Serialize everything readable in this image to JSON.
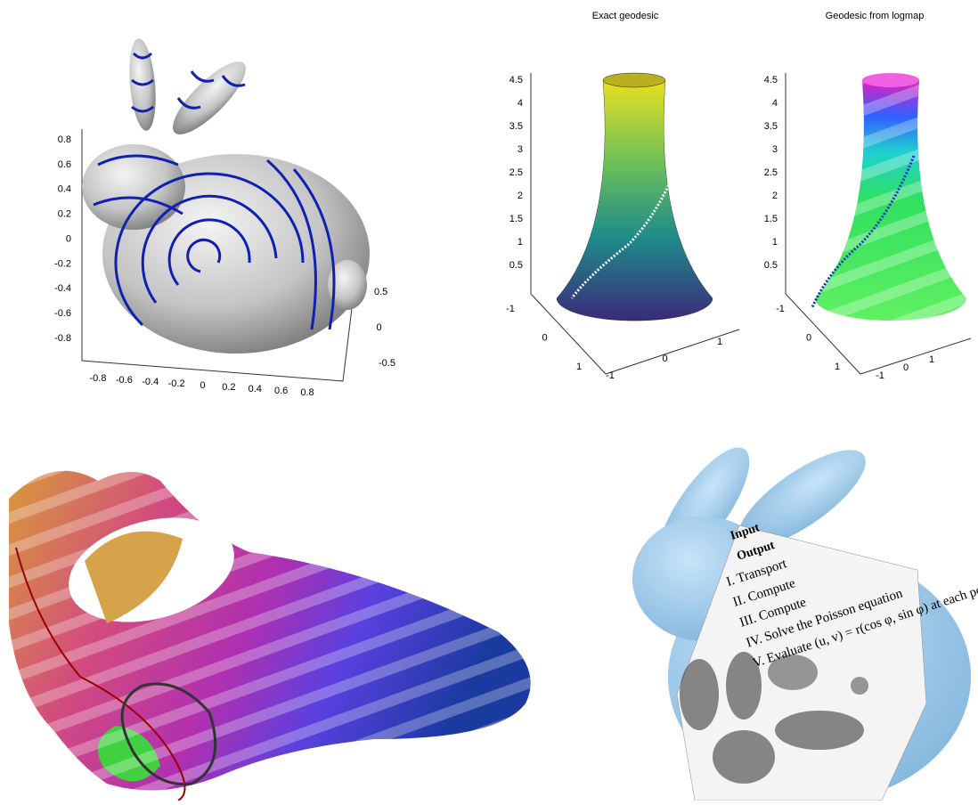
{
  "panels": [
    {
      "z_ticks": [
        "0.8",
        "0.6",
        "0.4",
        "0.2",
        "0",
        "-0.2",
        "-0.4",
        "-0.6",
        "-0.8"
      ],
      "x_ticks": [
        "-0.8",
        "-0.6",
        "-0.4",
        "-0.2",
        "0",
        "0.2",
        "0.4",
        "0.6",
        "0.8"
      ],
      "y_ticks": [
        "0.5",
        "0",
        "-0.5"
      ]
    },
    {
      "title": "Exact geodesic",
      "z_ticks": [
        "4.5",
        "4",
        "3.5",
        "3",
        "2.5",
        "2",
        "1.5",
        "1",
        "0.5"
      ],
      "y_ticks": [
        "-1",
        "0",
        "1"
      ],
      "x_ticks": [
        "-1",
        "0",
        "1"
      ]
    },
    {
      "title": "Geodesic from logmap",
      "z_ticks": [
        "4.5",
        "4",
        "3.5",
        "3",
        "2.5",
        "2",
        "1.5",
        "1",
        "0.5"
      ],
      "y_ticks": [
        "-1",
        "0",
        "1"
      ],
      "x_ticks": [
        "-1",
        "0",
        "1"
      ]
    }
  ],
  "texture_text": [
    "Input",
    "Output",
    "I. Transport",
    "II. Compute",
    "III. Compute",
    "IV. Solve the Poisson equation",
    "V. Evaluate (u, v) = r(cos φ, sin φ) at each point."
  ]
}
